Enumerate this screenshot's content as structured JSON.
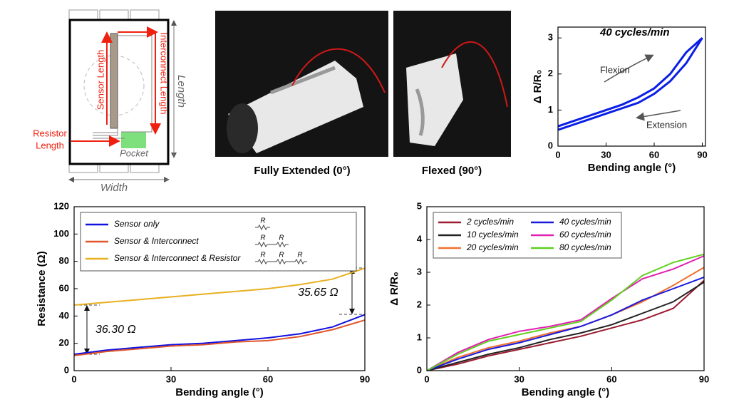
{
  "diagram": {
    "sensor_length": "Sensor Length",
    "interconnect_length": "Interconnect Length",
    "resistor_length": [
      "Resistor",
      "Length"
    ],
    "pocket": "Pocket",
    "length": "Length",
    "width": "Width"
  },
  "photos": {
    "captions": [
      "Fully Extended (0°)",
      "Flexed (90°)"
    ]
  },
  "chart_data": [
    {
      "type": "line",
      "annotations": [
        "40 cycles/min",
        "Flexion",
        "Extension"
      ],
      "x_label": "Bending angle (°)",
      "y_label": "Δ R/R₀",
      "xlim": [
        0,
        92
      ],
      "ylim": [
        0,
        3.3
      ],
      "xticks": [
        0,
        30,
        60,
        90
      ],
      "yticks": [
        0,
        1,
        2,
        3
      ],
      "series": [
        {
          "color": "#0a1ee6",
          "x": [
            0,
            10,
            20,
            30,
            40,
            50,
            60,
            70,
            80,
            90,
            80,
            70,
            60,
            50,
            40,
            30,
            20,
            10,
            0
          ],
          "values": [
            0.45,
            0.6,
            0.75,
            0.9,
            1.05,
            1.2,
            1.45,
            1.8,
            2.3,
            3.0,
            2.6,
            2.0,
            1.6,
            1.35,
            1.15,
            1.0,
            0.85,
            0.7,
            0.55
          ]
        }
      ]
    },
    {
      "type": "line",
      "x_label": "Bending angle (°)",
      "y_label": "Resistance (Ω)",
      "annotations": [
        "36.30 Ω",
        "35.65 Ω"
      ],
      "circuit_symbol": "R",
      "xlim": [
        0,
        90
      ],
      "ylim": [
        0,
        120
      ],
      "xticks": [
        0,
        30,
        60,
        90
      ],
      "yticks": [
        0,
        20,
        40,
        60,
        80,
        100,
        120
      ],
      "x": [
        0,
        10,
        20,
        30,
        40,
        50,
        60,
        70,
        80,
        90
      ],
      "series": [
        {
          "name": "Sensor only",
          "color": "#1010e0",
          "values": [
            12,
            15,
            17,
            19,
            20,
            22,
            24,
            27,
            32,
            41
          ]
        },
        {
          "name": "Sensor & Interconnect",
          "color": "#e0562a",
          "values": [
            11,
            14,
            16,
            18,
            19,
            21,
            22,
            25,
            30,
            37
          ]
        },
        {
          "name": "Sensor & Interconnect & Resistor",
          "color": "#e8b020",
          "values": [
            48,
            50,
            52,
            54,
            56,
            58,
            60,
            63,
            67,
            75
          ]
        }
      ]
    },
    {
      "type": "line",
      "x_label": "Bending angle (°)",
      "y_label": "Δ R/R₀",
      "xlim": [
        0,
        90
      ],
      "ylim": [
        0,
        5
      ],
      "xticks": [
        0,
        30,
        60,
        90
      ],
      "yticks": [
        0,
        1,
        2,
        3,
        4,
        5
      ],
      "x": [
        0,
        10,
        20,
        30,
        40,
        50,
        60,
        70,
        80,
        90
      ],
      "series": [
        {
          "name": "2 cycles/min",
          "color": "#9b1b30",
          "values": [
            0,
            0.2,
            0.45,
            0.65,
            0.85,
            1.05,
            1.3,
            1.55,
            1.9,
            2.75
          ]
        },
        {
          "name": "10 cycles/min",
          "color": "#222222",
          "values": [
            0,
            0.25,
            0.5,
            0.7,
            0.95,
            1.15,
            1.4,
            1.75,
            2.1,
            2.7
          ]
        },
        {
          "name": "20 cycles/min",
          "color": "#f07030",
          "values": [
            0,
            0.4,
            0.7,
            0.9,
            1.15,
            1.35,
            1.7,
            2.1,
            2.6,
            3.15
          ]
        },
        {
          "name": "40 cycles/min",
          "color": "#1a1adc",
          "values": [
            0,
            0.35,
            0.65,
            0.85,
            1.1,
            1.35,
            1.7,
            2.15,
            2.5,
            2.85
          ]
        },
        {
          "name": "60 cycles/min",
          "color": "#e020b0",
          "values": [
            0,
            0.55,
            0.95,
            1.2,
            1.35,
            1.55,
            2.2,
            2.8,
            3.1,
            3.5
          ]
        },
        {
          "name": "80 cycles/min",
          "color": "#60d020",
          "values": [
            0,
            0.5,
            0.9,
            1.1,
            1.3,
            1.5,
            2.15,
            2.9,
            3.3,
            3.55
          ]
        }
      ]
    }
  ]
}
